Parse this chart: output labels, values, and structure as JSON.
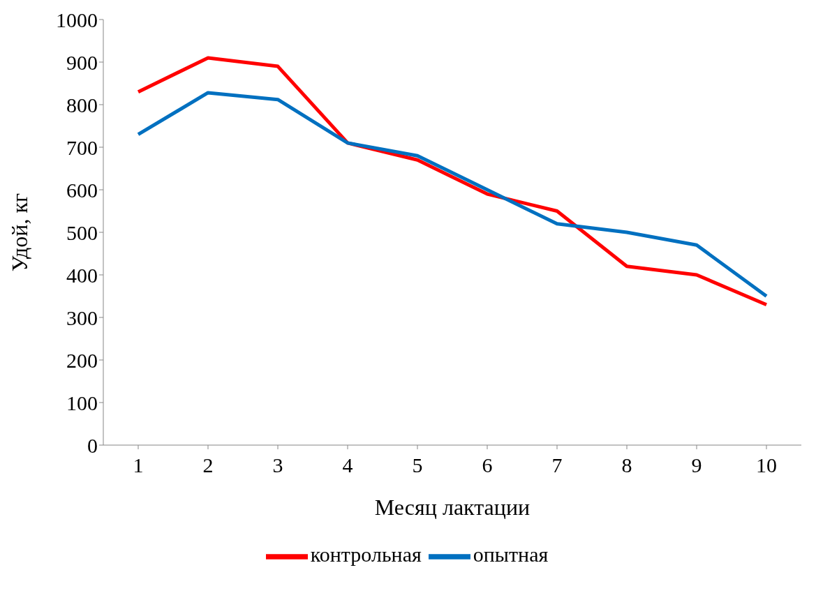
{
  "chart_data": {
    "type": "line",
    "xlabel": "Месяц лактации",
    "ylabel": "Удой, кг",
    "categories": [
      "1",
      "2",
      "3",
      "4",
      "5",
      "6",
      "7",
      "8",
      "9",
      "10"
    ],
    "series": [
      {
        "name": "контрольная",
        "color": "#ff0000",
        "values": [
          830,
          910,
          890,
          710,
          670,
          590,
          550,
          420,
          400,
          330
        ]
      },
      {
        "name": "опытная",
        "color": "#0070c0",
        "values": [
          730,
          828,
          812,
          710,
          680,
          600,
          520,
          500,
          470,
          350
        ]
      }
    ],
    "ylim": [
      0,
      1000
    ],
    "yticks": [
      0,
      100,
      200,
      300,
      400,
      500,
      600,
      700,
      800,
      900,
      1000
    ],
    "grid": false,
    "legend": "bottom",
    "marker": "none",
    "line_style": "solid"
  }
}
